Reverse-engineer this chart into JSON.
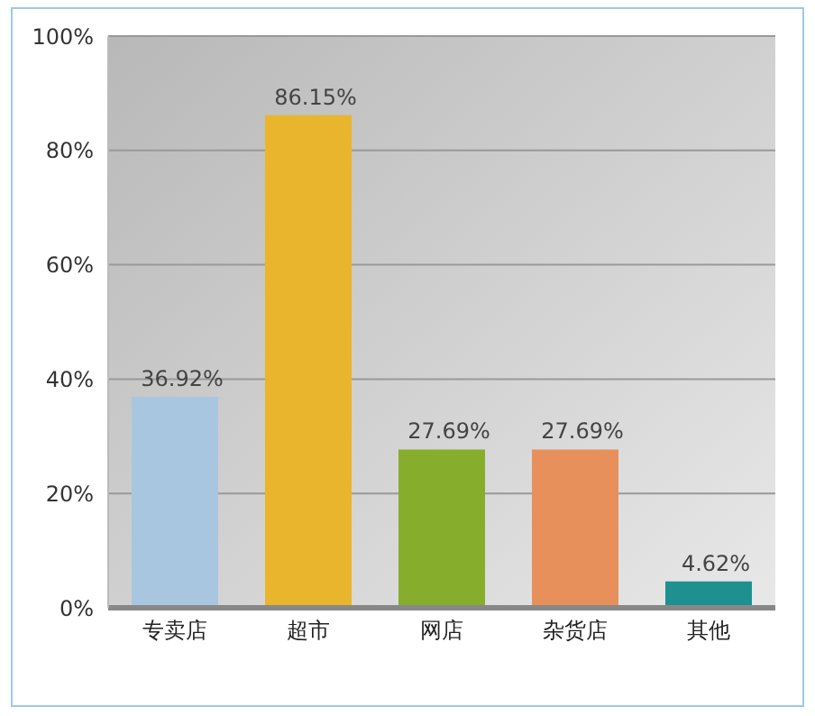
{
  "chart_data": {
    "type": "bar",
    "categories": [
      "专卖店",
      "超市",
      "网店",
      "杂货店",
      "其他"
    ],
    "values": [
      36.92,
      86.15,
      27.69,
      27.69,
      4.62
    ],
    "colors": [
      "#a9c6e0",
      "#e8b52c",
      "#86ad2c",
      "#e8905c",
      "#1e9090"
    ],
    "value_labels": [
      "36.92%",
      "86.15%",
      "27.69%",
      "27.69%",
      "4.62%"
    ],
    "ylim": [
      0,
      100
    ],
    "yticks": [
      {
        "value": 0,
        "label": "0%"
      },
      {
        "value": 20,
        "label": "20%"
      },
      {
        "value": 40,
        "label": "40%"
      },
      {
        "value": 60,
        "label": "60%"
      },
      {
        "value": 80,
        "label": "80%"
      },
      {
        "value": 100,
        "label": "100%"
      }
    ],
    "grid": "y"
  }
}
